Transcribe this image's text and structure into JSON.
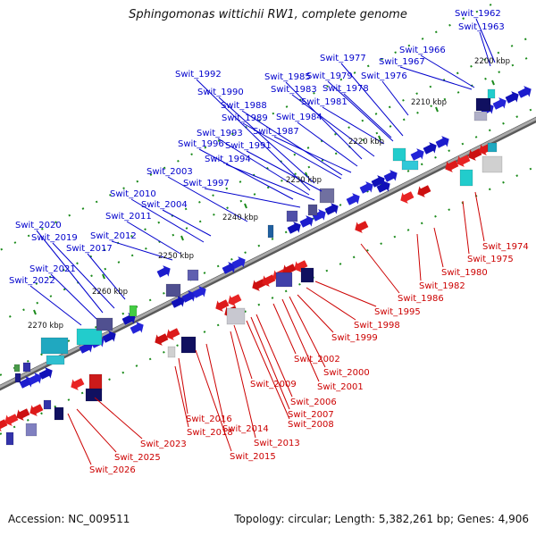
{
  "title": "Sphingomonas wittichii RW1, complete genome",
  "footer": {
    "accession": "Accession: NC_009511",
    "summary": "Topology: circular; Length: 5,382,261 bp; Genes: 4,906"
  },
  "colors": {
    "forward": "#0000cc",
    "reverse": "#cc0000",
    "backbone": "#888888",
    "tick": "#1a8a1a",
    "label_forward": "#0000cc",
    "label_reverse": "#cc0000"
  },
  "scale_labels": [
    "2200 kbp",
    "2210 kbp",
    "2220 kbp",
    "2230 kbp",
    "2240 kbp",
    "2250 kbp",
    "2260 kbp",
    "2270 kbp"
  ],
  "forward_genes": [
    "Swit_1962",
    "Swit_1963",
    "Swit_1966",
    "Swit_1967",
    "Swit_1976",
    "Swit_1977",
    "Swit_1978",
    "Swit_1979",
    "Swit_1981",
    "Swit_1983",
    "Swit_1984",
    "Swit_1985",
    "Swit_1987",
    "Swit_1988",
    "Swit_1989",
    "Swit_1990",
    "Swit_1991",
    "Swit_1992",
    "Swit_1993",
    "Swit_1994",
    "Swit_1996",
    "Swit_1997",
    "Swit_2003",
    "Swit_2004",
    "Swit_2010",
    "Swit_2011",
    "Swit_2012",
    "Swit_2017",
    "Swit_2019",
    "Swit_2020",
    "Swit_2021",
    "Swit_2022"
  ],
  "reverse_genes": [
    "Swit_1974",
    "Swit_1975",
    "Swit_1980",
    "Swit_1982",
    "Swit_1986",
    "Swit_1995",
    "Swit_1998",
    "Swit_1999",
    "Swit_2000",
    "Swit_2001",
    "Swit_2002",
    "Swit_2006",
    "Swit_2007",
    "Swit_2008",
    "Swit_2009",
    "Swit_2013",
    "Swit_2014",
    "Swit_2015",
    "Swit_2016",
    "Swit_2018",
    "Swit_2023",
    "Swit_2025",
    "Swit_2026"
  ]
}
